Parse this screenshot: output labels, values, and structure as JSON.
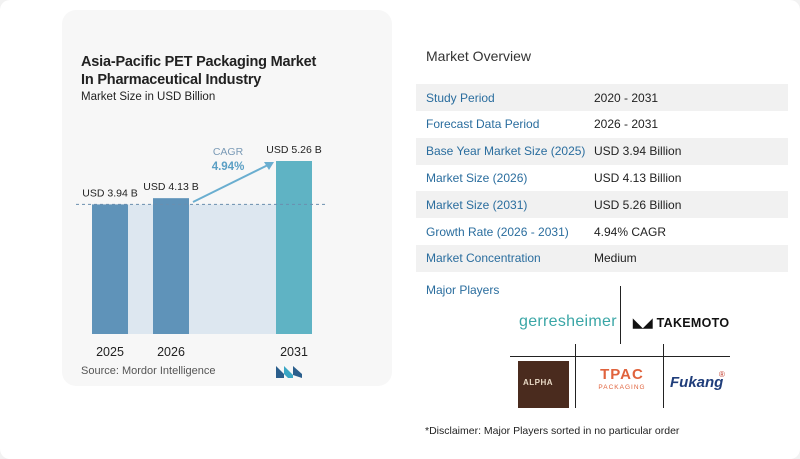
{
  "chart_data": {
    "type": "bar",
    "title_line1": "Asia-Pacific PET Packaging Market",
    "title_line2": "In Pharmaceutical Industry",
    "subtitle": "Market Size in USD Billion",
    "categories": [
      "2025",
      "2026",
      "2031"
    ],
    "values": [
      3.94,
      4.13,
      5.26
    ],
    "value_labels": [
      "USD 3.94 B",
      "USD 4.13 B",
      "USD 5.26 B"
    ],
    "cagr_label": "CAGR",
    "cagr_value": "4.94%",
    "ylim": [
      0,
      5.5
    ],
    "grid": false,
    "bar_colors": [
      "#5f93b9",
      "#5f93b9",
      "#5fb3c4"
    ],
    "shade_color": "#dde7f0",
    "dashed_reference": 3.94
  },
  "source": "Source:  Mordor Intelligence",
  "overview": {
    "title": "Market Overview",
    "rows": [
      {
        "k": "Study Period",
        "v": "2020 - 2031"
      },
      {
        "k": "Forecast Data Period",
        "v": "2026 - 2031"
      },
      {
        "k": "Base Year Market Size (2025)",
        "v": "USD 3.94 Billion"
      },
      {
        "k": "Market Size (2026)",
        "v": "USD 4.13 Billion"
      },
      {
        "k": "Market Size (2031)",
        "v": "USD 5.26 Billion"
      },
      {
        "k": "Growth Rate (2026 - 2031)",
        "v": "4.94% CAGR"
      },
      {
        "k": "Market Concentration",
        "v": "Medium"
      }
    ]
  },
  "players": {
    "title": "Major Players",
    "names": [
      "gerresheimer",
      "TAKEMOTO",
      "ALPHA",
      "TPAC",
      "PACKAGING",
      "Fukang"
    ]
  },
  "disclaimer": "*Disclaimer: Major Players sorted in no particular order",
  "colors": {
    "accent": "#2a6d9e",
    "bar": "#5f93b9",
    "bar_last": "#5fb3c4"
  }
}
